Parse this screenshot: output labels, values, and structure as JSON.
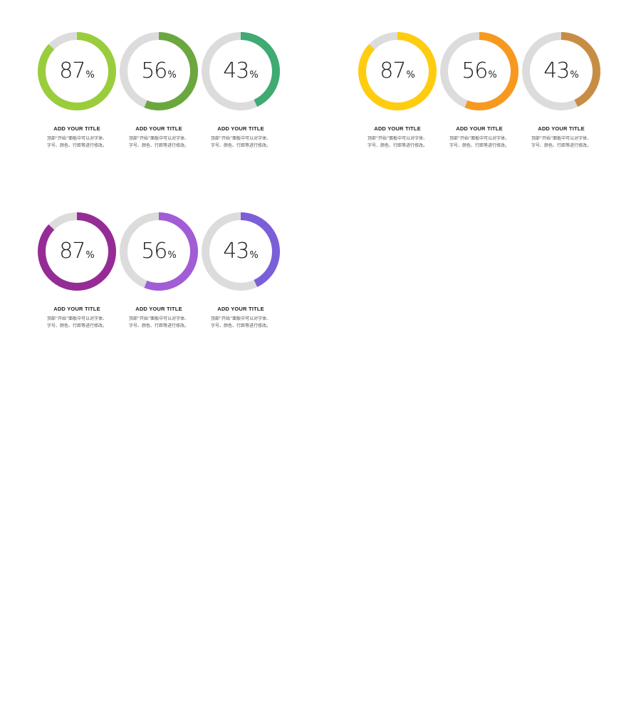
{
  "chart_data": [
    {
      "type": "pie",
      "series": [
        {
          "value": 87,
          "unit": "%",
          "color": "#9ACD3C",
          "title": "ADD YOUR TITLE",
          "desc_line1": "顶部“开始”面板中可以对字体、",
          "desc_line2": "字号、颜色、行距等进行修改。"
        },
        {
          "value": 56,
          "unit": "%",
          "color": "#6AA83E",
          "title": "ADD YOUR TITLE",
          "desc_line1": "顶部“开始”面板中可以对字体、",
          "desc_line2": "字号、颜色、行距等进行修改。"
        },
        {
          "value": 43,
          "unit": "%",
          "color": "#3FAA72",
          "title": "ADD YOUR TITLE",
          "desc_line1": "顶部“开始”面板中可以对字体、",
          "desc_line2": "字号、颜色、行距等进行修改。"
        }
      ],
      "track_color": "#DCDCDC"
    },
    {
      "type": "pie",
      "series": [
        {
          "value": 87,
          "unit": "%",
          "color": "#FFCC0F",
          "title": "ADD YOUR TITLE",
          "desc_line1": "顶部“开始”面板中可以对字体、",
          "desc_line2": "字号、颜色、行距等进行修改。"
        },
        {
          "value": 56,
          "unit": "%",
          "color": "#F7991F",
          "title": "ADD YOUR TITLE",
          "desc_line1": "顶部“开始”面板中可以对字体、",
          "desc_line2": "字号、颜色、行距等进行修改。"
        },
        {
          "value": 43,
          "unit": "%",
          "color": "#C88D45",
          "title": "ADD YOUR TITLE",
          "desc_line1": "顶部“开始”面板中可以对字体、",
          "desc_line2": "字号、颜色、行距等进行修改。"
        }
      ],
      "track_color": "#DCDCDC"
    },
    {
      "type": "pie",
      "series": [
        {
          "value": 87,
          "unit": "%",
          "color": "#952C95",
          "title": "ADD YOUR TITLE",
          "desc_line1": "顶部“开始”面板中可以对字体、",
          "desc_line2": "字号、颜色、行距等进行修改。"
        },
        {
          "value": 56,
          "unit": "%",
          "color": "#A15CD6",
          "title": "ADD YOUR TITLE",
          "desc_line1": "顶部“开始”面板中可以对字体、",
          "desc_line2": "字号、颜色、行距等进行修改。"
        },
        {
          "value": 43,
          "unit": "%",
          "color": "#7A5FD9",
          "title": "ADD YOUR TITLE",
          "desc_line1": "顶部“开始”面板中可以对字体、",
          "desc_line2": "字号、颜色、行距等进行修改。"
        }
      ],
      "track_color": "#DCDCDC"
    }
  ]
}
